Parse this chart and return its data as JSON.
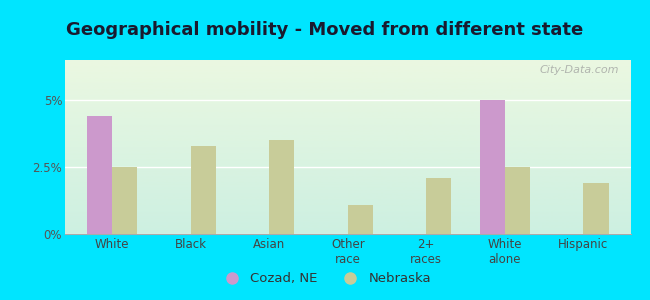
{
  "title": "Geographical mobility - Moved from different state",
  "categories": [
    "White",
    "Black",
    "Asian",
    "Other\nrace",
    "2+\nraces",
    "White\nalone",
    "Hispanic"
  ],
  "cozad_values": [
    4.4,
    0,
    0,
    0,
    0,
    5.0,
    0
  ],
  "nebraska_values": [
    2.5,
    3.3,
    3.5,
    1.1,
    2.1,
    2.5,
    1.9
  ],
  "cozad_color": "#cc99cc",
  "nebraska_color": "#c8cc99",
  "bar_width": 0.32,
  "ylim": [
    0,
    6.5
  ],
  "yticks": [
    0,
    2.5,
    5.0
  ],
  "ytick_labels": [
    "0%",
    "2.5%",
    "5%"
  ],
  "plot_bg_top": "#e8f5e0",
  "plot_bg_bottom": "#d0f0e8",
  "outer_background": "#00e5ff",
  "legend_labels": [
    "Cozad, NE",
    "Nebraska"
  ],
  "watermark": "City-Data.com",
  "title_fontsize": 13,
  "tick_fontsize": 8.5,
  "legend_fontsize": 9.5
}
